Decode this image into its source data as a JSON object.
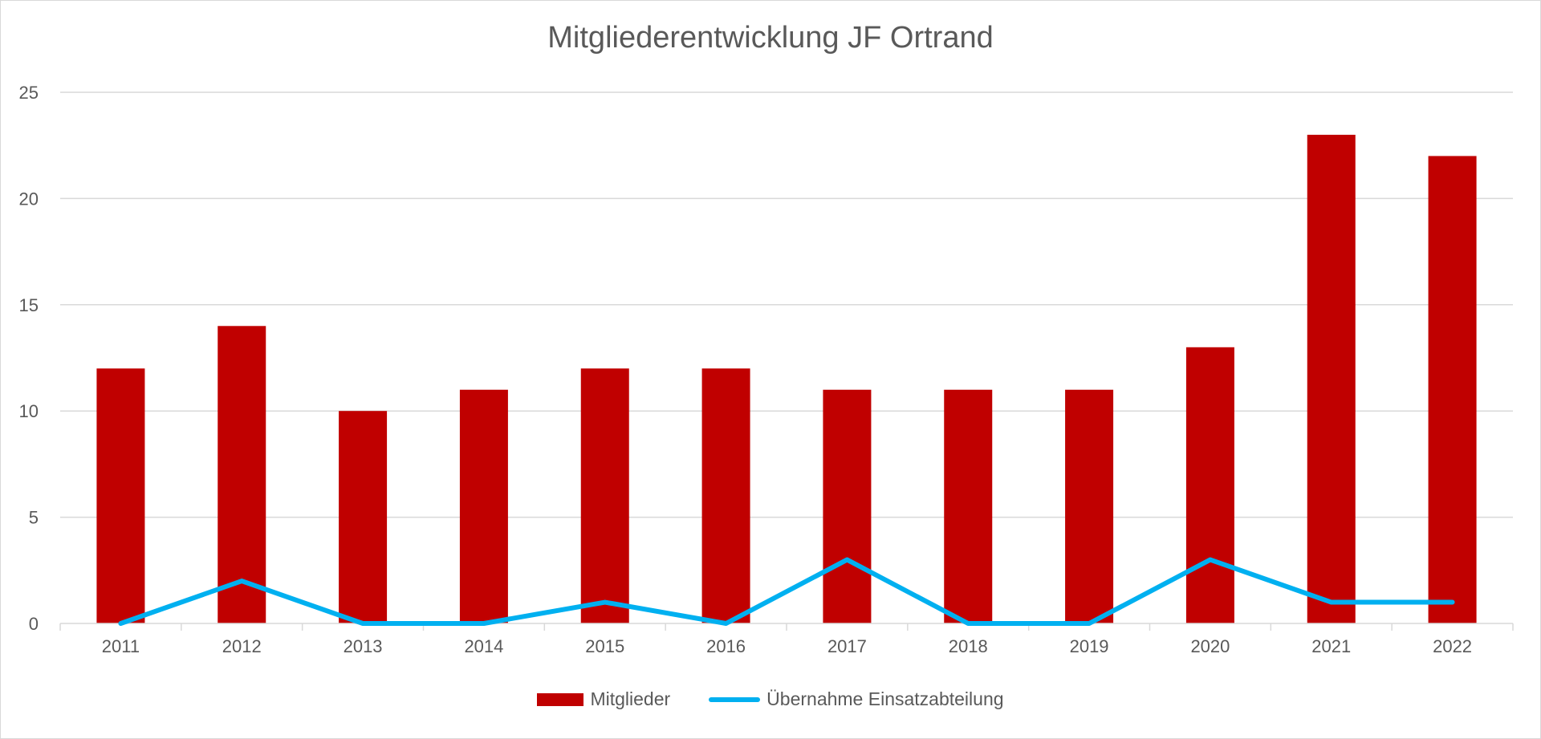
{
  "chart_data": {
    "type": "bar",
    "title": "Mitgliederentwicklung JF Ortrand",
    "xlabel": "",
    "ylabel": "",
    "ylim": [
      0,
      25
    ],
    "yticks": [
      "0",
      "5",
      "10",
      "15",
      "20",
      "25"
    ],
    "categories": [
      "2011",
      "2012",
      "2013",
      "2014",
      "2015",
      "2016",
      "2017",
      "2018",
      "2019",
      "2020",
      "2021",
      "2022"
    ],
    "series": [
      {
        "name": "Mitglieder",
        "kind": "bar",
        "color": "#c00000",
        "values": [
          12,
          14,
          10,
          11,
          12,
          12,
          11,
          11,
          11,
          13,
          23,
          22
        ]
      },
      {
        "name": "Übernahme Einsatzabteilung",
        "kind": "line",
        "color": "#00b0f0",
        "values": [
          0,
          2,
          0,
          0,
          1,
          0,
          3,
          0,
          0,
          3,
          1,
          1
        ]
      }
    ],
    "grid": true,
    "legend_position": "bottom"
  }
}
